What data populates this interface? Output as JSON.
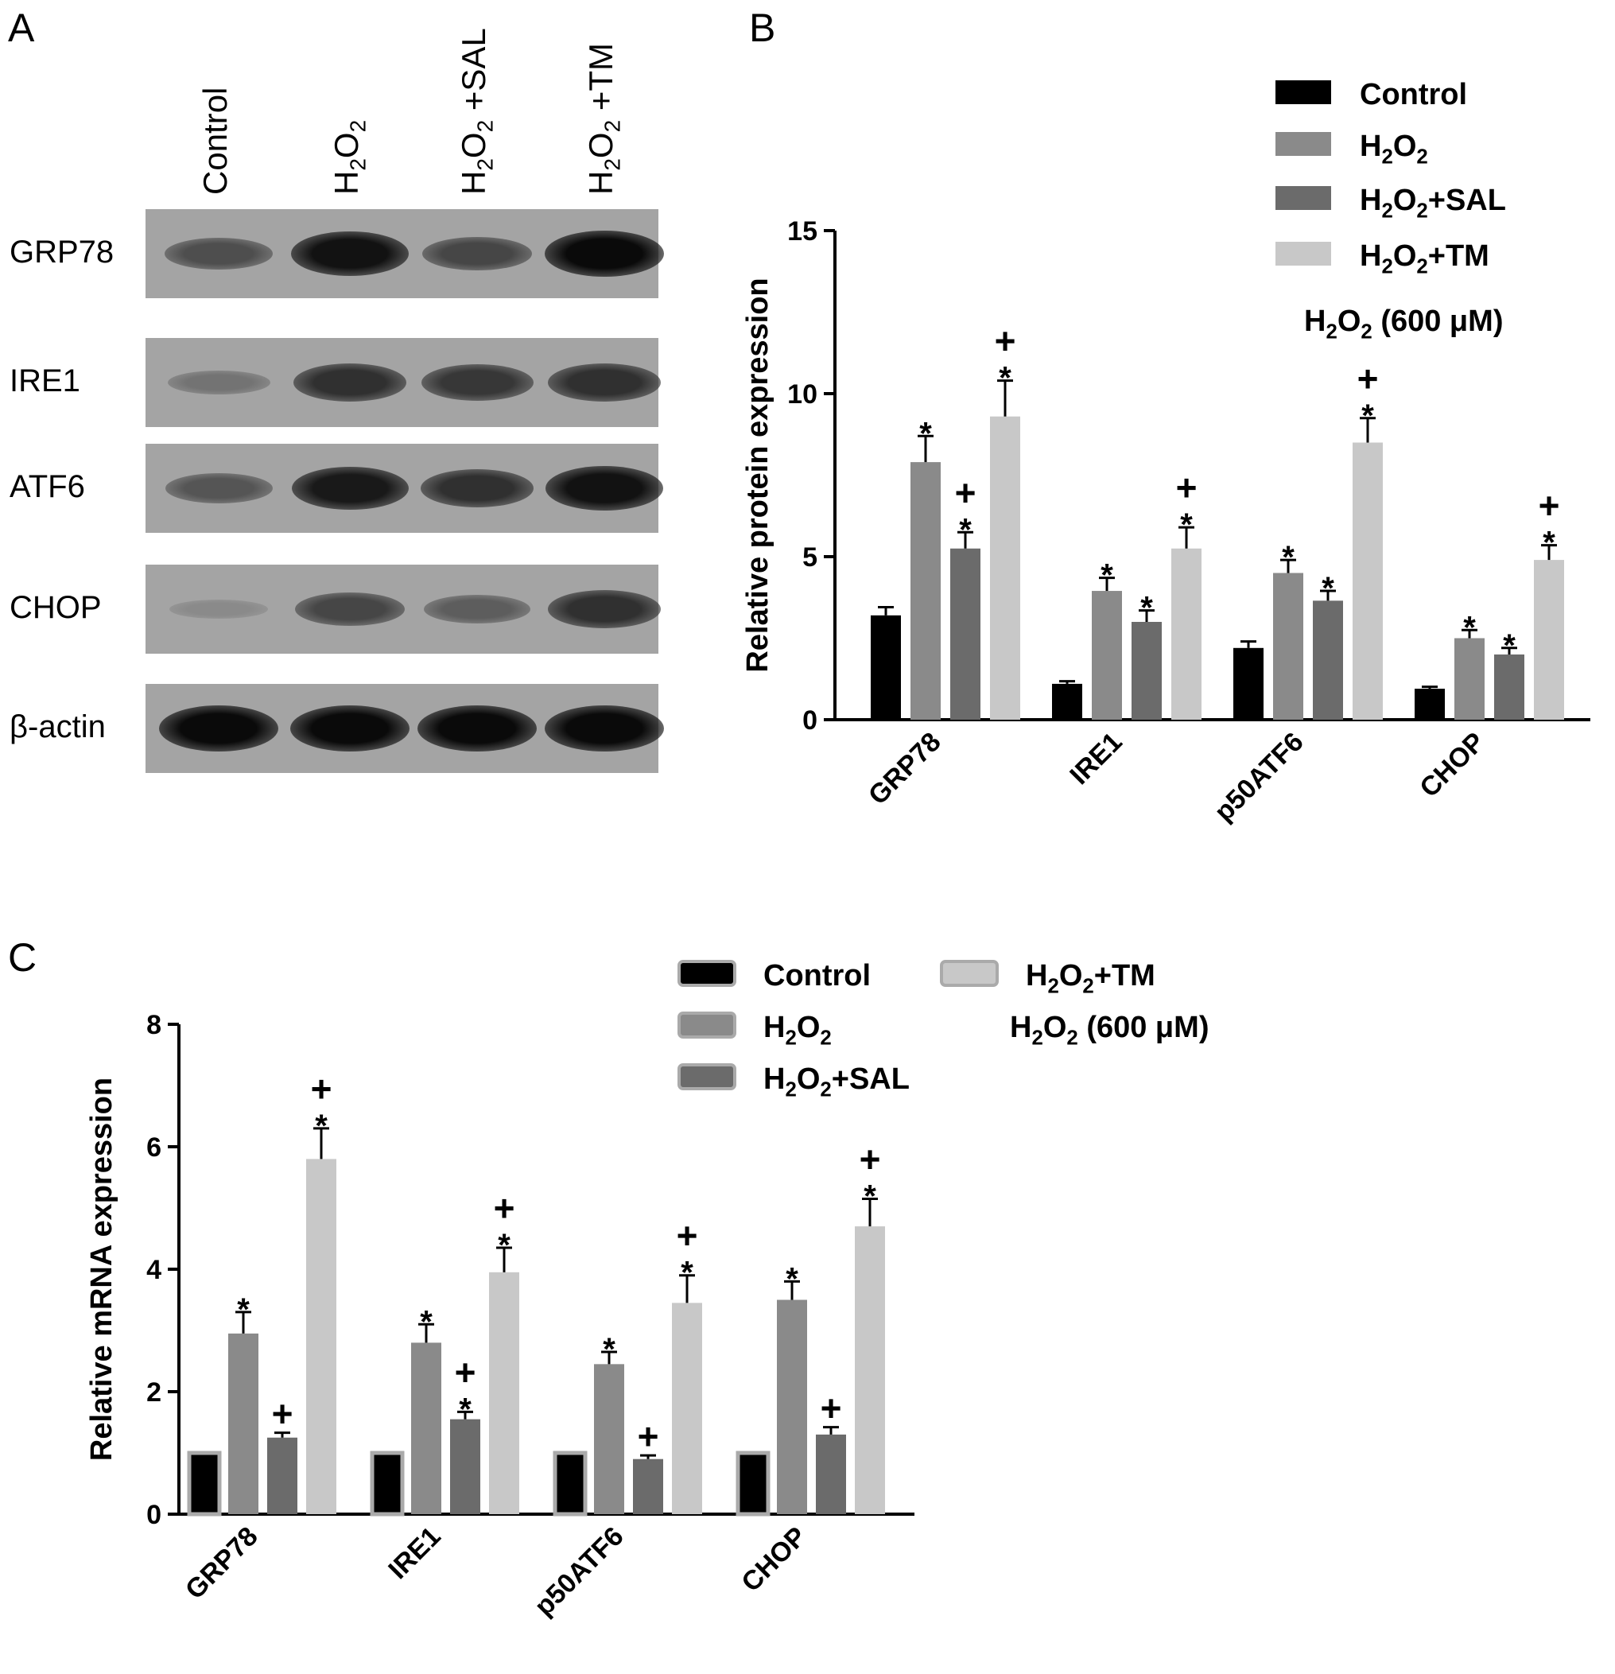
{
  "panels": [
    "A",
    "B",
    "C"
  ],
  "blot": {
    "lanes": [
      "Control",
      "H2O2",
      "H2O2 +SAL",
      "H2O2 +TM"
    ],
    "lane_labels": [
      {
        "text": "Control"
      },
      {
        "base": "H",
        "sub1": "2",
        "mid": "O",
        "sub2": "2",
        "tail": ""
      },
      {
        "base": "H",
        "sub1": "2",
        "mid": "O",
        "sub2": "2",
        "tail": " +SAL"
      },
      {
        "base": "H",
        "sub1": "2",
        "mid": "O",
        "sub2": "2",
        "tail": " +TM"
      }
    ],
    "rows": [
      {
        "label": "GRP78",
        "intensity": [
          0.55,
          0.95,
          0.6,
          1.0
        ]
      },
      {
        "label": "IRE1",
        "intensity": [
          0.3,
          0.75,
          0.7,
          0.75
        ]
      },
      {
        "label": "ATF6",
        "intensity": [
          0.5,
          0.9,
          0.75,
          0.95
        ]
      },
      {
        "label": "CHOP",
        "intensity": [
          0.15,
          0.6,
          0.45,
          0.75
        ]
      },
      {
        "label": "β-actin",
        "intensity": [
          1.0,
          1.0,
          1.0,
          1.0
        ]
      }
    ]
  },
  "chart_data": [
    {
      "type": "bar",
      "panel": "B",
      "ylabel": "Relative protein expression",
      "ylim": [
        0,
        15
      ],
      "yticks": [
        0,
        5,
        10,
        15
      ],
      "categories": [
        "GRP78",
        "IRE1",
        "p50ATF6",
        "CHOP"
      ],
      "series": [
        {
          "name": "Control",
          "color": "#000000",
          "values": [
            3.2,
            1.1,
            2.2,
            0.95
          ],
          "errors": [
            0.25,
            0.08,
            0.2,
            0.06
          ],
          "marks": [
            "",
            "",
            "",
            ""
          ]
        },
        {
          "name": "H2O2",
          "color": "#8a8a8a",
          "values": [
            7.9,
            3.95,
            4.5,
            2.5
          ],
          "errors": [
            0.8,
            0.4,
            0.4,
            0.25
          ],
          "marks": [
            "*",
            "*",
            "*",
            "*"
          ]
        },
        {
          "name": "H2O2+SAL",
          "color": "#6b6b6b",
          "values": [
            5.25,
            3.0,
            3.65,
            2.0
          ],
          "errors": [
            0.5,
            0.35,
            0.3,
            0.2
          ],
          "marks": [
            "+*",
            "*",
            "*",
            "*"
          ]
        },
        {
          "name": "H2O2+TM",
          "color": "#c8c8c8",
          "values": [
            9.3,
            5.25,
            8.5,
            4.9
          ],
          "errors": [
            1.1,
            0.65,
            0.75,
            0.45
          ],
          "marks": [
            "+*",
            "+*",
            "+*",
            "+*"
          ]
        }
      ],
      "legend": [
        "Control",
        "H2O2",
        "H2O2+SAL",
        "H2O2+TM"
      ],
      "legend_position": "top-right",
      "note": "H2O2 (600 μM)"
    },
    {
      "type": "bar",
      "panel": "C",
      "ylabel": "Relative mRNA expression",
      "ylim": [
        0,
        8
      ],
      "yticks": [
        0,
        2,
        4,
        6,
        8
      ],
      "categories": [
        "GRP78",
        "IRE1",
        "p50ATF6",
        "CHOP"
      ],
      "series": [
        {
          "name": "Control",
          "color": "#000000",
          "values": [
            1.0,
            1.0,
            1.0,
            1.0
          ],
          "errors": [
            0,
            0,
            0,
            0
          ],
          "marks": [
            "",
            "",
            "",
            ""
          ]
        },
        {
          "name": "H2O2",
          "color": "#8a8a8a",
          "values": [
            2.95,
            2.8,
            2.45,
            3.5
          ],
          "errors": [
            0.35,
            0.3,
            0.2,
            0.3
          ],
          "marks": [
            "*",
            "*",
            "*",
            "*"
          ]
        },
        {
          "name": "H2O2+SAL",
          "color": "#6b6b6b",
          "values": [
            1.25,
            1.55,
            0.9,
            1.3
          ],
          "errors": [
            0.08,
            0.12,
            0.06,
            0.12
          ],
          "marks": [
            "+",
            "+*",
            "+",
            "+"
          ]
        },
        {
          "name": "H2O2+TM",
          "color": "#c8c8c8",
          "values": [
            5.8,
            3.95,
            3.45,
            4.7
          ],
          "errors": [
            0.5,
            0.4,
            0.45,
            0.45
          ],
          "marks": [
            "+*",
            "+*",
            "+*",
            "+*"
          ]
        }
      ],
      "legend": [
        "Control",
        "H2O2",
        "H2O2+SAL",
        "H2O2+TM"
      ],
      "legend_position": "top",
      "note": "H2O2 (600 μM)"
    }
  ]
}
